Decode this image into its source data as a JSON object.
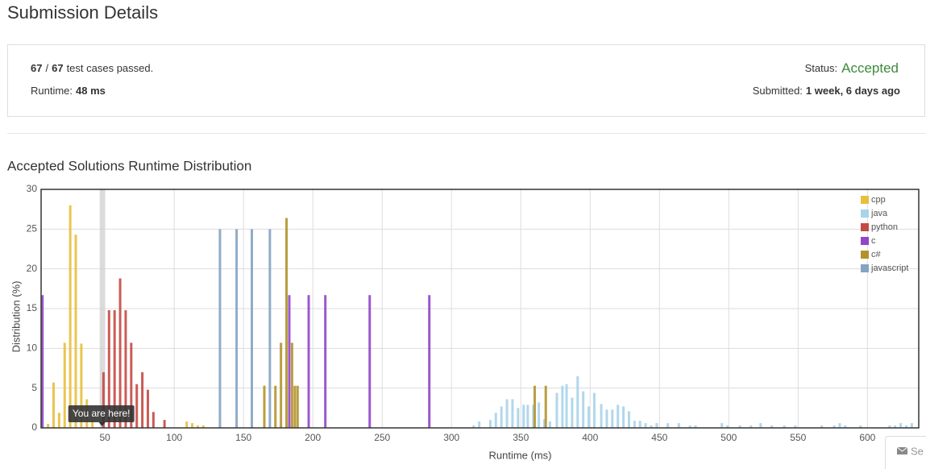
{
  "header": {
    "title": "Submission Details"
  },
  "details": {
    "passed": "67",
    "separator": "/",
    "total": "67",
    "text": "test cases passed.",
    "runtime": {
      "label": "Runtime:",
      "value": "48 ms"
    },
    "status": {
      "label": "Status:",
      "value": "Accepted"
    },
    "submitted": {
      "label": "Submitted:",
      "value": "1 week, 6 days ago"
    }
  },
  "chart_data": {
    "type": "bar",
    "title": "Accepted Solutions Runtime Distribution",
    "xlabel": "Runtime (ms)",
    "ylabel": "Distribution (%)",
    "xlim": [
      4,
      637
    ],
    "ylim": [
      0,
      30
    ],
    "xticks": [
      50,
      100,
      150,
      200,
      250,
      300,
      350,
      400,
      450,
      500,
      550,
      600
    ],
    "yticks": [
      0,
      5,
      10,
      15,
      20,
      25,
      30
    ],
    "grid": true,
    "legend": "upper right",
    "highlight": {
      "x": 48,
      "label": "You are here!"
    },
    "series": [
      {
        "name": "cpp",
        "color": "#e8bf3f",
        "x": [
          9,
          13,
          17,
          21,
          25,
          29,
          33,
          37,
          41,
          109,
          113,
          117,
          121
        ],
        "values": [
          0.5,
          5.7,
          1.9,
          10.7,
          28,
          24.3,
          10.6,
          3.6,
          1.0,
          0.8,
          0.6,
          0.3,
          0.3
        ]
      },
      {
        "name": "java",
        "color": "#a9d3ea",
        "x": [
          316,
          320,
          328,
          332,
          336,
          340,
          344,
          348,
          352,
          355,
          359,
          363,
          367,
          371,
          376,
          380,
          383,
          387,
          391,
          395,
          399,
          403,
          408,
          412,
          416,
          420,
          424,
          428,
          432,
          436,
          440,
          444,
          448,
          456,
          464,
          472,
          476,
          495,
          499,
          508,
          516,
          523,
          531,
          540,
          548,
          567,
          576,
          580,
          584,
          595,
          616,
          620,
          624,
          628,
          632
        ],
        "values": [
          0.3,
          0.8,
          1.0,
          1.9,
          2.7,
          3.6,
          3.6,
          2.5,
          2.9,
          2.9,
          2.9,
          3.2,
          1.1,
          0.8,
          4.4,
          5.3,
          5.5,
          3.8,
          6.5,
          4.6,
          2.7,
          4.4,
          3.0,
          2.3,
          2.3,
          2.9,
          2.7,
          2.1,
          0.9,
          0.9,
          0.6,
          0.3,
          0.6,
          0.6,
          0.6,
          0.3,
          0.3,
          0.6,
          0.3,
          0.3,
          0.3,
          0.6,
          0.3,
          0.3,
          0.3,
          0.3,
          0.3,
          0.6,
          0.3,
          0.3,
          0.3,
          0.3,
          0.6,
          0.3,
          0.6
        ]
      },
      {
        "name": "python",
        "color": "#c44a44",
        "x": [
          49,
          53,
          57,
          61,
          65,
          69,
          73,
          77,
          81,
          85,
          93
        ],
        "values": [
          7,
          14.8,
          14.8,
          18.8,
          14.8,
          10.7,
          5.5,
          7,
          4.8,
          2,
          1
        ]
      },
      {
        "name": "c",
        "color": "#9046c9",
        "x": [
          5,
          183,
          197,
          209,
          241,
          284
        ],
        "values": [
          16.7,
          16.7,
          16.7,
          16.7,
          16.7,
          16.7
        ]
      },
      {
        "name": "c#",
        "color": "#b3922c",
        "x": [
          165,
          173,
          177,
          181,
          185,
          187,
          189,
          360,
          368
        ],
        "values": [
          5.3,
          5.3,
          10.7,
          26.4,
          10.7,
          5.3,
          5.3,
          5.3,
          5.3
        ]
      },
      {
        "name": "javascript",
        "color": "#85a3c2",
        "x": [
          133,
          145,
          156,
          169
        ],
        "values": [
          25,
          25,
          25,
          25
        ]
      }
    ]
  },
  "footer_button": "Se"
}
